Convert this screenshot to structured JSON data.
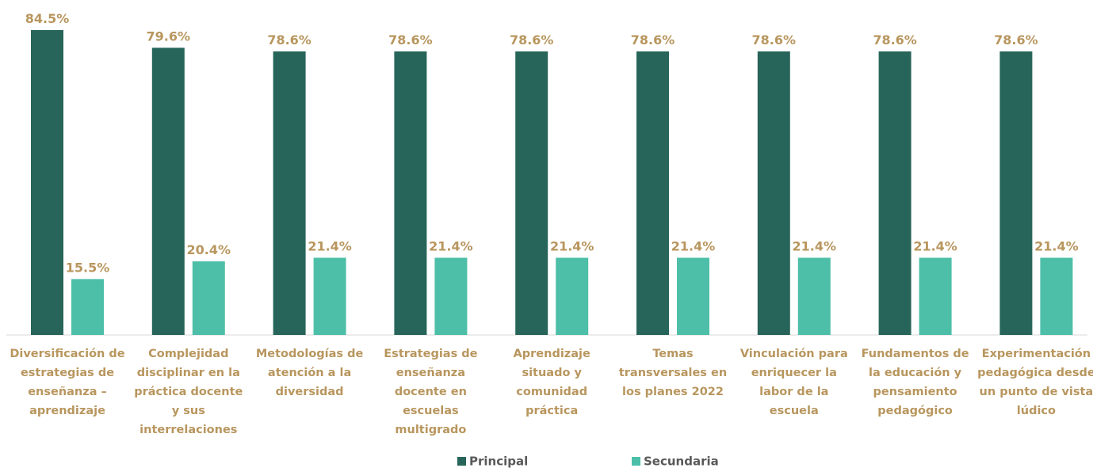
{
  "chart_data": {
    "type": "bar",
    "categories": [
      "Diversificación de estrategias de enseñanza – aprendizaje",
      "Complejidad disciplinar en la práctica docente y sus interrelaciones",
      "Metodologías de atención a la diversidad",
      "Estrategias de enseñanza docente en escuelas multigrado",
      "Aprendizaje situado y comunidad práctica",
      "Temas transversales en los planes 2022",
      "Vinculación para enriquecer la labor de la escuela",
      "Fundamentos de la educación y pensamiento pedagógico",
      "Experimentación pedagógica desde un punto de vista lúdico"
    ],
    "series": [
      {
        "name": "Principal",
        "color": "#27655a",
        "values": [
          84.5,
          79.6,
          78.6,
          78.6,
          78.6,
          78.6,
          78.6,
          78.6,
          78.6
        ],
        "value_labels": [
          "84.5%",
          "79.6%",
          "78.6%",
          "78.6%",
          "78.6%",
          "78.6%",
          "78.6%",
          "78.6%",
          "78.6%"
        ]
      },
      {
        "name": "Secundaria",
        "color": "#4dbfa8",
        "values": [
          15.5,
          20.4,
          21.4,
          21.4,
          21.4,
          21.4,
          21.4,
          21.4,
          21.4
        ],
        "value_labels": [
          "15.5%",
          "20.4%",
          "21.4%",
          "21.4%",
          "21.4%",
          "21.4%",
          "21.4%",
          "21.4%",
          "21.4%"
        ]
      }
    ],
    "legend": "bottom"
  }
}
